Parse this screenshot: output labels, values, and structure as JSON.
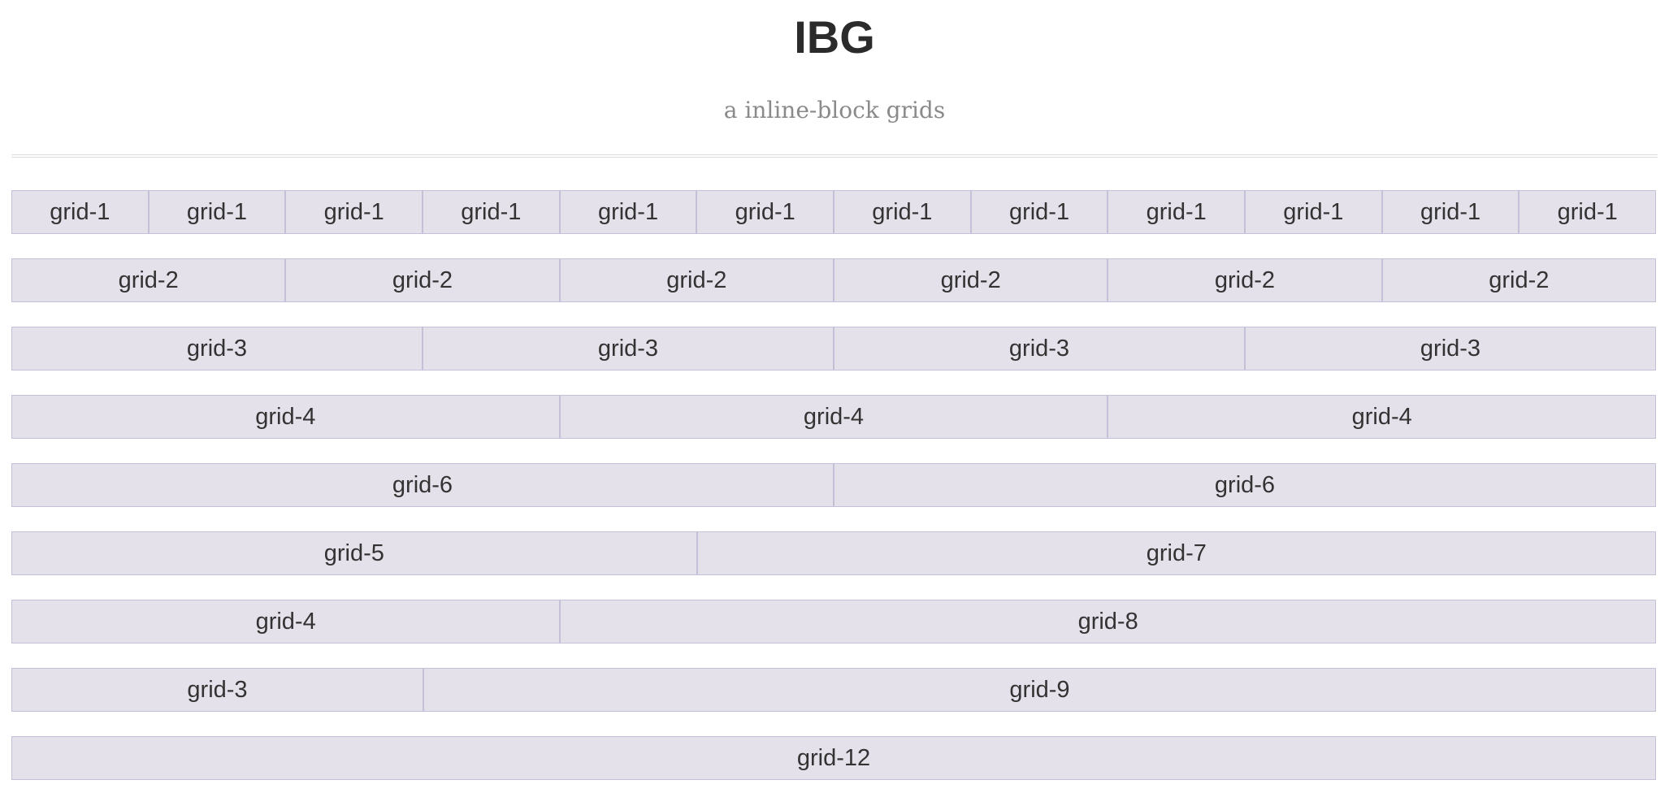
{
  "header": {
    "title": "IBG",
    "subtitle": "a inline-block grids"
  },
  "colors": {
    "cell_background": "#e4e1ea",
    "cell_border": "#c4c0d8",
    "text": "#333333"
  },
  "rows": [
    [
      {
        "label": "grid-1",
        "span": 1
      },
      {
        "label": "grid-1",
        "span": 1
      },
      {
        "label": "grid-1",
        "span": 1
      },
      {
        "label": "grid-1",
        "span": 1
      },
      {
        "label": "grid-1",
        "span": 1
      },
      {
        "label": "grid-1",
        "span": 1
      },
      {
        "label": "grid-1",
        "span": 1
      },
      {
        "label": "grid-1",
        "span": 1
      },
      {
        "label": "grid-1",
        "span": 1
      },
      {
        "label": "grid-1",
        "span": 1
      },
      {
        "label": "grid-1",
        "span": 1
      },
      {
        "label": "grid-1",
        "span": 1
      }
    ],
    [
      {
        "label": "grid-2",
        "span": 2
      },
      {
        "label": "grid-2",
        "span": 2
      },
      {
        "label": "grid-2",
        "span": 2
      },
      {
        "label": "grid-2",
        "span": 2
      },
      {
        "label": "grid-2",
        "span": 2
      },
      {
        "label": "grid-2",
        "span": 2
      }
    ],
    [
      {
        "label": "grid-3",
        "span": 3
      },
      {
        "label": "grid-3",
        "span": 3
      },
      {
        "label": "grid-3",
        "span": 3
      },
      {
        "label": "grid-3",
        "span": 3
      }
    ],
    [
      {
        "label": "grid-4",
        "span": 4
      },
      {
        "label": "grid-4",
        "span": 4
      },
      {
        "label": "grid-4",
        "span": 4
      }
    ],
    [
      {
        "label": "grid-6",
        "span": 6
      },
      {
        "label": "grid-6",
        "span": 6
      }
    ],
    [
      {
        "label": "grid-5",
        "span": 5
      },
      {
        "label": "grid-7",
        "span": 7
      }
    ],
    [
      {
        "label": "grid-4",
        "span": 4
      },
      {
        "label": "grid-8",
        "span": 8
      }
    ],
    [
      {
        "label": "grid-3",
        "span": 3
      },
      {
        "label": "grid-9",
        "span": 9
      }
    ],
    [
      {
        "label": "grid-12",
        "span": 12
      }
    ]
  ]
}
